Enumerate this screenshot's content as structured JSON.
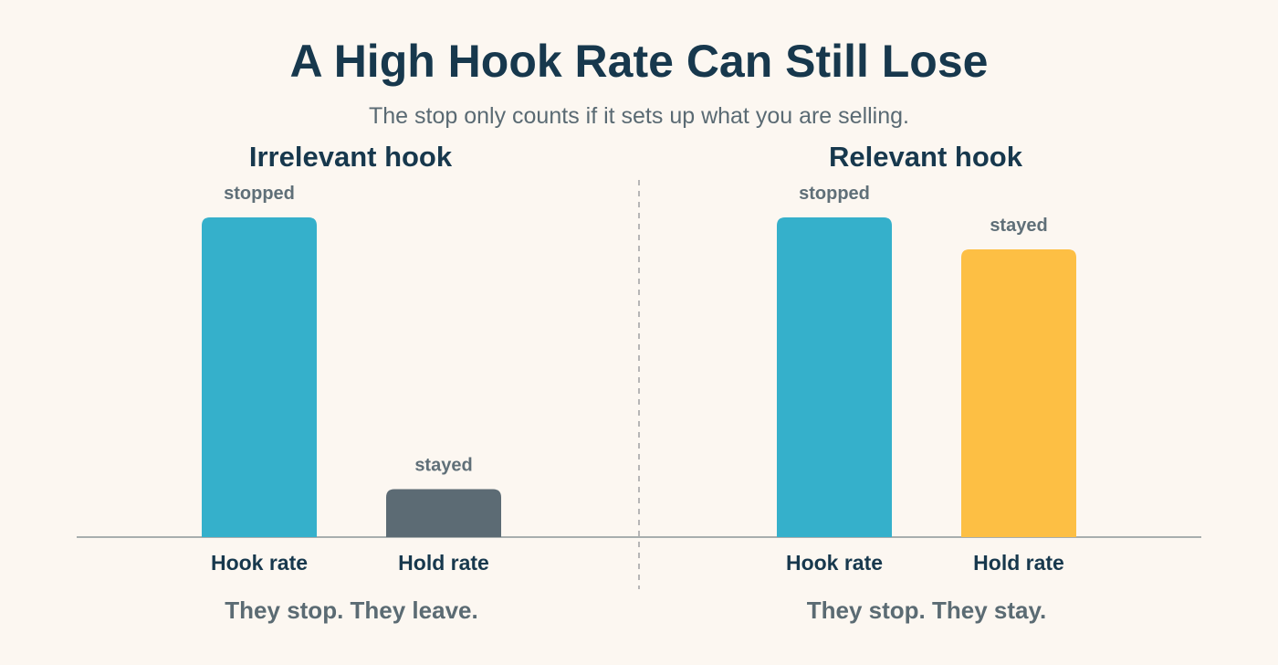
{
  "title": "A High Hook Rate Can Still Lose",
  "subtitle": "The stop only counts if it sets up what you are selling.",
  "colors": {
    "hook": "#35b0cb",
    "hold_irrelevant": "#5c6b74",
    "hold_relevant": "#fdbf44",
    "baseline": "#a8aeae",
    "divider": "#b6b6b6",
    "bar_label": "#5f6f78",
    "axis_label": "#17384d"
  },
  "chart_data": [
    {
      "type": "bar",
      "title": "Irrelevant hook",
      "categories": [
        "Hook rate",
        "Hold rate"
      ],
      "values": [
        100,
        15
      ],
      "bar_labels": [
        "stopped",
        "stayed"
      ],
      "bar_colors": [
        "#35b0cb",
        "#5c6b74"
      ],
      "caption": "They stop. They leave.",
      "ylim": [
        0,
        100
      ],
      "grid": false
    },
    {
      "type": "bar",
      "title": "Relevant hook",
      "categories": [
        "Hook rate",
        "Hold rate"
      ],
      "values": [
        100,
        90
      ],
      "bar_labels": [
        "stopped",
        "stayed"
      ],
      "bar_colors": [
        "#35b0cb",
        "#fdbf44"
      ],
      "caption": "They stop. They stay.",
      "ylim": [
        0,
        100
      ],
      "grid": false
    }
  ]
}
